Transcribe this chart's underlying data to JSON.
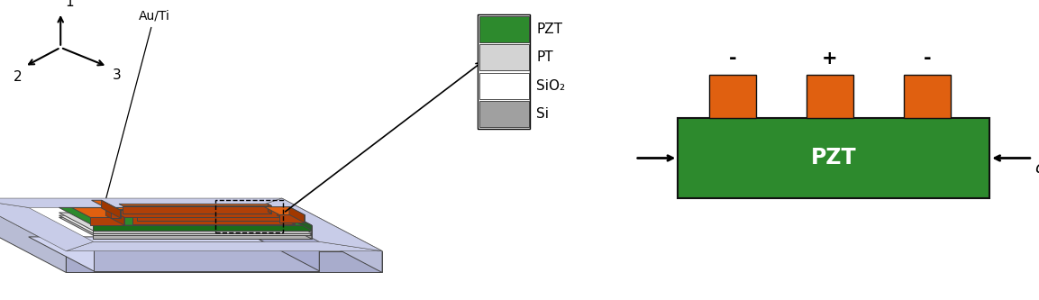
{
  "fig_width": 11.53,
  "fig_height": 3.33,
  "dpi": 100,
  "bg_color": "#ffffff",
  "legend_labels": [
    "PZT",
    "PT",
    "SiO₂",
    "Si"
  ],
  "legend_colors": [
    "#2d8a2d",
    "#d3d3d3",
    "#ffffff",
    "#a0a0a0"
  ],
  "pzt_bar_color": "#2d8a2d",
  "electrode_color": "#e06010",
  "pzt_label": "PZT",
  "pzt_label_color": "#ffffff",
  "electrode_signs": [
    "-",
    "+",
    "-"
  ],
  "sigma_label": "σ",
  "c_si_top": "#c8cce8",
  "c_si_front": "#a8accc",
  "c_si_side": "#b8bcd8",
  "c_si_inner": "#d0d4f0",
  "c_green": "#2d8a2d",
  "c_orange": "#e06010",
  "c_orange_dark": "#b04008"
}
